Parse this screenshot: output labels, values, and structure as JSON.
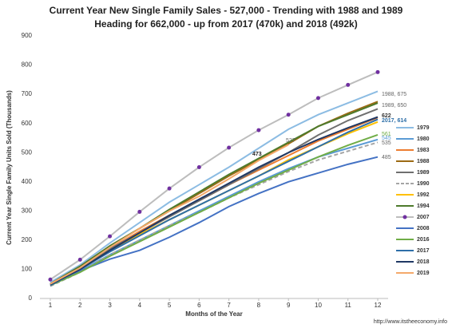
{
  "chart_data": {
    "type": "line",
    "title": [
      "Current Year New Single Family Sales - 527,000 - Trending with 1988 and 1989",
      "Heading for 662,000 -  up from 2017 (470k) and 2018 (492k)"
    ],
    "x_label": "Months of the Year",
    "y_label": "Current Year Single Family Units Sold (Thousands)",
    "source": "http://www.itstheeconomy.info",
    "x": [
      1,
      2,
      3,
      4,
      5,
      6,
      7,
      8,
      9,
      10,
      11,
      12
    ],
    "xlim": [
      1,
      12
    ],
    "xticks": [
      1,
      2,
      3,
      4,
      5,
      6,
      7,
      8,
      9,
      10,
      11,
      12
    ],
    "ylim": [
      0,
      900
    ],
    "yticks": [
      0,
      100,
      200,
      300,
      400,
      500,
      600,
      700,
      800,
      900
    ],
    "grid": false,
    "legend": "right",
    "series": [
      {
        "name": "1979",
        "color": "#8cbce3",
        "values": [
          55,
          115,
          190,
          260,
          330,
          390,
          450,
          515,
          580,
          630,
          670,
          710
        ]
      },
      {
        "name": "1980",
        "color": "#5b9bd5",
        "values": [
          45,
          95,
          150,
          200,
          250,
          300,
          350,
          400,
          445,
          485,
          515,
          545
        ]
      },
      {
        "name": "1983",
        "color": "#ed7d31",
        "values": [
          45,
          100,
          170,
          230,
          285,
          335,
          390,
          440,
          490,
          540,
          580,
          620
        ]
      },
      {
        "name": "1988",
        "color": "#9c6b14",
        "values": [
          50,
          110,
          180,
          240,
          300,
          360,
          420,
          475,
          530,
          590,
          635,
          675
        ]
      },
      {
        "name": "1989",
        "color": "#6f6f6f",
        "values": [
          50,
          105,
          170,
          225,
          280,
          335,
          390,
          445,
          500,
          560,
          610,
          650
        ]
      },
      {
        "name": "1990",
        "color": "#a5a5a5",
        "dash": true,
        "values": [
          42,
          90,
          150,
          200,
          250,
          295,
          345,
          390,
          435,
          475,
          505,
          535
        ]
      },
      {
        "name": "1992",
        "color": "#ffc000",
        "values": [
          45,
          100,
          165,
          220,
          270,
          320,
          370,
          420,
          475,
          520,
          565,
          605
        ]
      },
      {
        "name": "1994",
        "color": "#4e7a2c",
        "values": [
          50,
          110,
          180,
          240,
          305,
          365,
          425,
          480,
          535,
          590,
          630,
          670
        ]
      },
      {
        "name": "2007",
        "color": "#bdbdbd",
        "marker": "#7030a0",
        "values": [
          65,
          133,
          213,
          297,
          377,
          450,
          517,
          577,
          630,
          687,
          732,
          776
        ]
      },
      {
        "name": "2008",
        "color": "#4472c4",
        "values": [
          45,
          95,
          135,
          165,
          210,
          260,
          315,
          360,
          400,
          430,
          460,
          485
        ]
      },
      {
        "name": "2016",
        "color": "#70ad47",
        "values": [
          45,
          90,
          145,
          195,
          245,
          295,
          345,
          395,
          440,
          485,
          525,
          561
        ]
      },
      {
        "name": "2017",
        "color": "#2e6fa8",
        "values": [
          45,
          100,
          160,
          215,
          270,
          320,
          370,
          420,
          470,
          520,
          570,
          614
        ]
      },
      {
        "name": "2018",
        "color": "#203864",
        "values": [
          48,
          100,
          165,
          225,
          285,
          340,
          395,
          450,
          500,
          545,
          585,
          622
        ]
      },
      {
        "name": "2019",
        "color": "#f4a96a",
        "values": [
          50,
          105,
          175,
          240,
          300,
          350,
          410,
          473,
          527,
          null,
          null,
          null
        ]
      }
    ],
    "annotations": [
      "1988, 675",
      "1989, 650",
      "622",
      "2017, 614",
      "561",
      "545",
      "535",
      "485",
      "527",
      "473"
    ]
  }
}
